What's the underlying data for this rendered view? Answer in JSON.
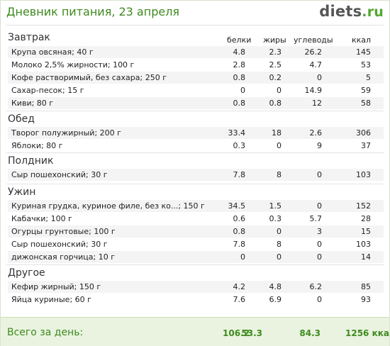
{
  "header": {
    "title": "Дневник питания, 23 апреля",
    "logo_main": "diets",
    "logo_suffix": ".ru"
  },
  "columns": {
    "proteins": "белки",
    "fats": "жиры",
    "carbs": "углеводы",
    "kcal": "ккал"
  },
  "sections": [
    {
      "name": "Завтрак",
      "items": [
        {
          "name": "Крупа овсяная; 40 г",
          "proteins": "4.8",
          "fats": "2.3",
          "carbs": "26.2",
          "kcal": "145"
        },
        {
          "name": "Молоко 2,5% жирности; 100 г",
          "proteins": "2.8",
          "fats": "2.5",
          "carbs": "4.7",
          "kcal": "53"
        },
        {
          "name": "Кофе растворимый, без сахара; 250 г",
          "proteins": "0.8",
          "fats": "0.2",
          "carbs": "0",
          "kcal": "5"
        },
        {
          "name": "Сахар-песок; 15 г",
          "proteins": "0",
          "fats": "0",
          "carbs": "14.9",
          "kcal": "59"
        },
        {
          "name": "Киви; 80 г",
          "proteins": "0.8",
          "fats": "0.8",
          "carbs": "12",
          "kcal": "58"
        }
      ]
    },
    {
      "name": "Обед",
      "items": [
        {
          "name": "Творог полужирный; 200 г",
          "proteins": "33.4",
          "fats": "18",
          "carbs": "2.6",
          "kcal": "306"
        },
        {
          "name": "Яблоки; 80 г",
          "proteins": "0.3",
          "fats": "0",
          "carbs": "9",
          "kcal": "37"
        }
      ]
    },
    {
      "name": "Полдник",
      "items": [
        {
          "name": "Сыр пошехонский; 30 г",
          "proteins": "7.8",
          "fats": "8",
          "carbs": "0",
          "kcal": "103"
        }
      ]
    },
    {
      "name": "Ужин",
      "items": [
        {
          "name": "Куриная грудка, куриное филе, без ко...; 150 г",
          "proteins": "34.5",
          "fats": "1.5",
          "carbs": "0",
          "kcal": "152"
        },
        {
          "name": "Кабачки; 100 г",
          "proteins": "0.6",
          "fats": "0.3",
          "carbs": "5.7",
          "kcal": "28"
        },
        {
          "name": "Огурцы грунтовые; 100 г",
          "proteins": "0.8",
          "fats": "0",
          "carbs": "3",
          "kcal": "15"
        },
        {
          "name": "Сыр пошехонский; 30 г",
          "proteins": "7.8",
          "fats": "8",
          "carbs": "0",
          "kcal": "103"
        },
        {
          "name": "дижонская горчица; 10 г",
          "proteins": "0",
          "fats": "0",
          "carbs": "0",
          "kcal": "14"
        }
      ]
    },
    {
      "name": "Другое",
      "items": [
        {
          "name": "Кефир жирный; 150 г",
          "proteins": "4.2",
          "fats": "4.8",
          "carbs": "6.2",
          "kcal": "85"
        },
        {
          "name": "Яйца куриные; 60 г",
          "proteins": "7.6",
          "fats": "6.9",
          "carbs": "0",
          "kcal": "93"
        }
      ]
    }
  ],
  "totals": {
    "label": "Всего за день:",
    "proteins": "106.2",
    "fats": "53.3",
    "carbs": "84.3",
    "kcal": "1256 ккал"
  },
  "colors": {
    "accent": "#3f8a1f",
    "footer_bg": "#e9f3df"
  }
}
